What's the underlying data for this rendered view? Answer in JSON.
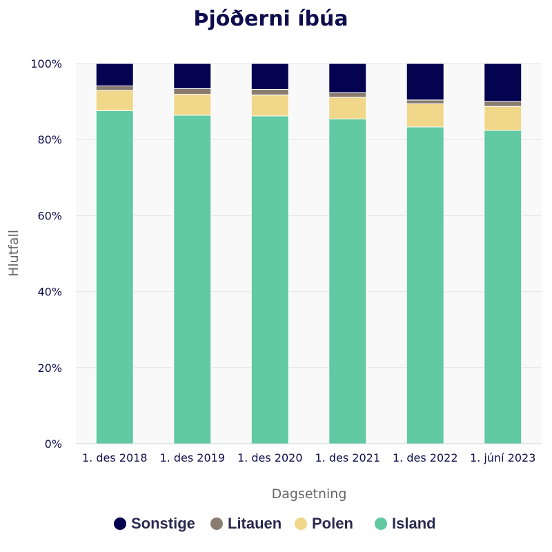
{
  "chart_data": {
    "type": "bar",
    "stacked": true,
    "title": "Þjóðerni íbúa",
    "xlabel": "Dagsetning",
    "ylabel": "Hlutfall",
    "ylim": [
      0,
      100
    ],
    "yticks": [
      "0%",
      "20%",
      "40%",
      "60%",
      "80%",
      "100%"
    ],
    "categories": [
      "1. des 2018",
      "1. des 2019",
      "1. des 2020",
      "1. des 2021",
      "1. des 2022",
      "1. júní 2023"
    ],
    "series": [
      {
        "name": "Island",
        "color": "#61c9a3",
        "values": [
          87.6,
          86.4,
          86.2,
          85.4,
          83.3,
          82.4
        ]
      },
      {
        "name": "Polen",
        "color": "#f0d789",
        "values": [
          5.3,
          5.5,
          5.5,
          5.7,
          6.1,
          6.3
        ]
      },
      {
        "name": "Litauen",
        "color": "#8a7d6f",
        "values": [
          1.2,
          1.5,
          1.5,
          1.2,
          1.0,
          1.3
        ]
      },
      {
        "name": "Sonstige",
        "color": "#03034f",
        "values": [
          5.9,
          6.6,
          6.8,
          7.7,
          9.6,
          10.0
        ]
      }
    ],
    "legend": [
      "Sonstige",
      "Litauen",
      "Polen",
      "Island"
    ],
    "grid": true,
    "legend_position": "bottom"
  }
}
